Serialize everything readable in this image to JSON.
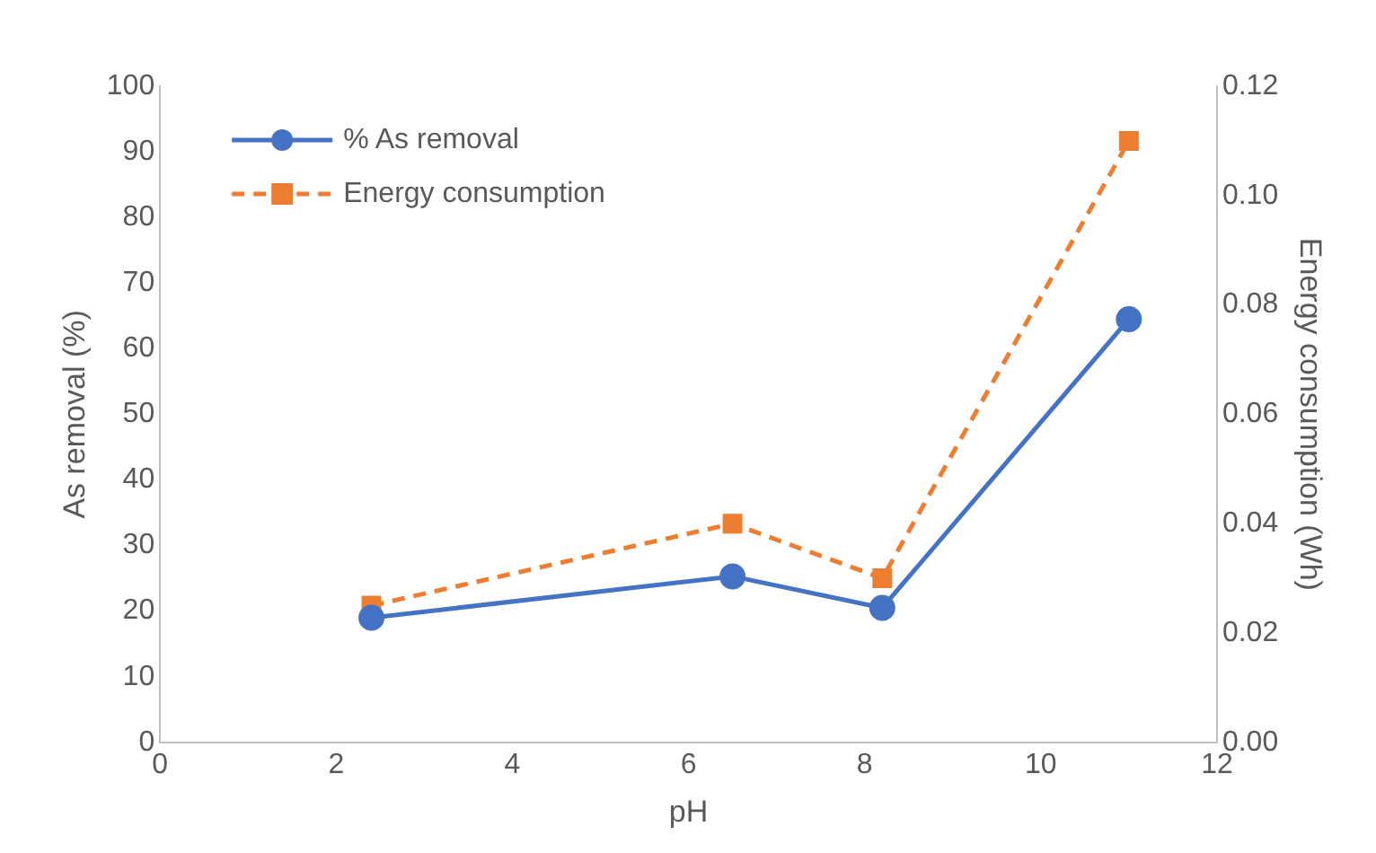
{
  "chart_data": {
    "type": "line",
    "xlabel": "pH",
    "ylabel": "As removal (%)",
    "y2label": "Energy consumption (Wh)",
    "x": [
      2.4,
      6.5,
      8.2,
      11
    ],
    "series": [
      {
        "name": "% As removal",
        "color": "#4472c4",
        "values": [
          19,
          25.3,
          20.5,
          64.5
        ],
        "marker": "circle",
        "line_style": "solid"
      },
      {
        "name": "Energy consumption",
        "color": "#ed7d31",
        "values": [
          0.025,
          0.04,
          0.03,
          0.11
        ],
        "axis": "y2",
        "marker": "square",
        "line_style": "dashed"
      }
    ],
    "xlim": [
      0,
      12
    ],
    "xticks": [
      0,
      2,
      4,
      6,
      8,
      10,
      12
    ],
    "ylim": [
      0,
      100
    ],
    "yticks": [
      0,
      10,
      20,
      30,
      40,
      50,
      60,
      70,
      80,
      90,
      100
    ],
    "y2lim": [
      0,
      0.12
    ],
    "y2ticks": [
      {
        "value": 0,
        "label": "0.00"
      },
      {
        "value": 0.02,
        "label": "0.02"
      },
      {
        "value": 0.04,
        "label": "0.04"
      },
      {
        "value": 0.06,
        "label": "0.06"
      },
      {
        "value": 0.08,
        "label": "0.08"
      },
      {
        "value": 0.1,
        "label": "0.10"
      },
      {
        "value": 0.12,
        "label": "0.12"
      }
    ],
    "grid": false,
    "legend": "top left"
  }
}
